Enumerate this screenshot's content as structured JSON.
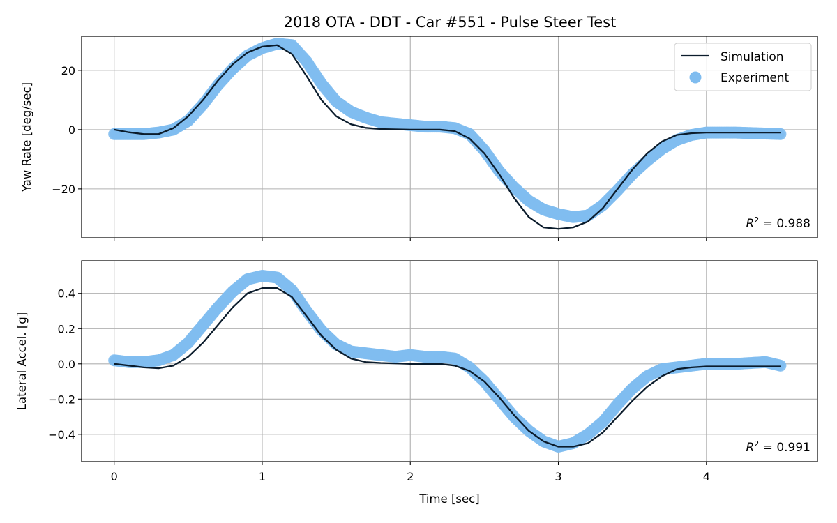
{
  "figure": {
    "title": "2018 OTA - DDT - Car #551 - Pulse Steer Test",
    "xlabel": "Time [sec]",
    "colors": {
      "simulation": "#0b1c2c",
      "experiment": "#7fbcef",
      "grid": "#b0b0b0"
    }
  },
  "chart_data": [
    {
      "type": "line",
      "id": "yaw",
      "title": "2018 OTA - DDT - Car #551 - Pulse Steer Test",
      "xlabel": "",
      "ylabel": "Yaw Rate [deg/sec]",
      "xlim": [
        -0.22,
        4.75
      ],
      "ylim": [
        -36.5,
        31.5
      ],
      "xticks": [
        0,
        1,
        2,
        3,
        4
      ],
      "yticks": [
        -20,
        0,
        20
      ],
      "grid": true,
      "legend": {
        "placement": "top-right",
        "entries": [
          "Simulation",
          "Experiment"
        ]
      },
      "annotation": {
        "prefix": "R",
        "exponent": "2",
        "text": " = 0.988"
      },
      "series": [
        {
          "name": "Simulation",
          "kind": "line",
          "x": [
            0,
            0.1,
            0.2,
            0.3,
            0.4,
            0.5,
            0.6,
            0.7,
            0.8,
            0.9,
            1.0,
            1.1,
            1.2,
            1.3,
            1.4,
            1.5,
            1.6,
            1.7,
            1.8,
            2.0,
            2.2,
            2.3,
            2.4,
            2.5,
            2.6,
            2.7,
            2.8,
            2.9,
            3.0,
            3.1,
            3.2,
            3.3,
            3.4,
            3.5,
            3.6,
            3.7,
            3.8,
            3.9,
            4.0,
            4.2,
            4.5
          ],
          "y": [
            0,
            -0.9,
            -1.5,
            -1.5,
            0.5,
            4.5,
            10,
            16.5,
            22,
            26,
            28,
            28.5,
            25.5,
            18,
            10,
            4.5,
            1.8,
            0.6,
            0.2,
            0,
            0,
            -0.5,
            -3,
            -8,
            -15,
            -23,
            -29.5,
            -33,
            -33.5,
            -33,
            -31,
            -26.5,
            -20,
            -13.5,
            -8,
            -4,
            -1.8,
            -1.2,
            -1,
            -1,
            -1
          ]
        },
        {
          "name": "Experiment",
          "kind": "scatter",
          "x": [
            0,
            0.2,
            0.3,
            0.4,
            0.5,
            0.6,
            0.7,
            0.8,
            0.9,
            1.0,
            1.1,
            1.2,
            1.3,
            1.4,
            1.5,
            1.6,
            1.7,
            1.8,
            1.9,
            2.0,
            2.1,
            2.2,
            2.3,
            2.4,
            2.5,
            2.6,
            2.7,
            2.8,
            2.9,
            3.0,
            3.1,
            3.2,
            3.3,
            3.4,
            3.5,
            3.6,
            3.7,
            3.8,
            3.9,
            4.0,
            4.2,
            4.5
          ],
          "y": [
            -1.5,
            -1.5,
            -1,
            0,
            3,
            8.5,
            15,
            20.5,
            25,
            27.5,
            29,
            28.5,
            23,
            15.5,
            9.5,
            6,
            4,
            2.5,
            2,
            1.5,
            1,
            1,
            0.5,
            -1.5,
            -7,
            -14,
            -19.5,
            -24,
            -27,
            -28.5,
            -29.5,
            -29,
            -25.5,
            -20.5,
            -15,
            -10.5,
            -6.5,
            -3.5,
            -1.8,
            -1,
            -1,
            -1.5
          ]
        }
      ]
    },
    {
      "type": "line",
      "id": "lat",
      "title": "",
      "xlabel": "Time [sec]",
      "ylabel": "Lateral Accel. [g]",
      "xlim": [
        -0.22,
        4.75
      ],
      "ylim": [
        -0.555,
        0.585
      ],
      "xticks": [
        0,
        1,
        2,
        3,
        4
      ],
      "yticks": [
        -0.4,
        -0.2,
        0.0,
        0.2,
        0.4
      ],
      "xtick_labels": [
        "0",
        "1",
        "2",
        "3",
        "4"
      ],
      "ytick_labels": [
        "−0.4",
        "−0.2",
        "0.0",
        "0.2",
        "0.4"
      ],
      "grid": true,
      "annotation": {
        "prefix": "R",
        "exponent": "2",
        "text": " = 0.991"
      },
      "series": [
        {
          "name": "Simulation",
          "kind": "line",
          "x": [
            0,
            0.1,
            0.2,
            0.3,
            0.4,
            0.5,
            0.6,
            0.7,
            0.8,
            0.9,
            1.0,
            1.1,
            1.2,
            1.3,
            1.4,
            1.5,
            1.6,
            1.7,
            1.8,
            2.0,
            2.2,
            2.3,
            2.4,
            2.5,
            2.6,
            2.7,
            2.8,
            2.9,
            3.0,
            3.1,
            3.2,
            3.3,
            3.4,
            3.5,
            3.6,
            3.7,
            3.8,
            3.9,
            4.0,
            4.2,
            4.5
          ],
          "y": [
            0,
            -0.01,
            -0.02,
            -0.025,
            -0.01,
            0.04,
            0.12,
            0.22,
            0.32,
            0.4,
            0.43,
            0.43,
            0.38,
            0.27,
            0.16,
            0.08,
            0.03,
            0.01,
            0.005,
            0,
            0,
            -0.01,
            -0.04,
            -0.1,
            -0.19,
            -0.29,
            -0.38,
            -0.44,
            -0.47,
            -0.47,
            -0.45,
            -0.39,
            -0.3,
            -0.21,
            -0.13,
            -0.07,
            -0.03,
            -0.02,
            -0.015,
            -0.015,
            -0.015
          ]
        },
        {
          "name": "Experiment",
          "kind": "scatter",
          "x": [
            0,
            0.1,
            0.2,
            0.3,
            0.4,
            0.5,
            0.6,
            0.7,
            0.8,
            0.9,
            1.0,
            1.1,
            1.2,
            1.3,
            1.4,
            1.5,
            1.6,
            1.7,
            1.8,
            1.9,
            2.0,
            2.1,
            2.2,
            2.3,
            2.4,
            2.5,
            2.6,
            2.7,
            2.8,
            2.9,
            3.0,
            3.1,
            3.2,
            3.3,
            3.4,
            3.5,
            3.6,
            3.7,
            3.8,
            3.9,
            4.0,
            4.2,
            4.4,
            4.5
          ],
          "y": [
            0.02,
            0.01,
            0.01,
            0.02,
            0.05,
            0.12,
            0.22,
            0.32,
            0.41,
            0.48,
            0.5,
            0.49,
            0.42,
            0.3,
            0.19,
            0.11,
            0.07,
            0.06,
            0.05,
            0.04,
            0.05,
            0.04,
            0.04,
            0.03,
            -0.02,
            -0.1,
            -0.2,
            -0.3,
            -0.38,
            -0.44,
            -0.47,
            -0.45,
            -0.4,
            -0.33,
            -0.23,
            -0.14,
            -0.07,
            -0.03,
            -0.02,
            -0.01,
            0,
            0,
            0.01,
            -0.01
          ]
        }
      ]
    }
  ]
}
